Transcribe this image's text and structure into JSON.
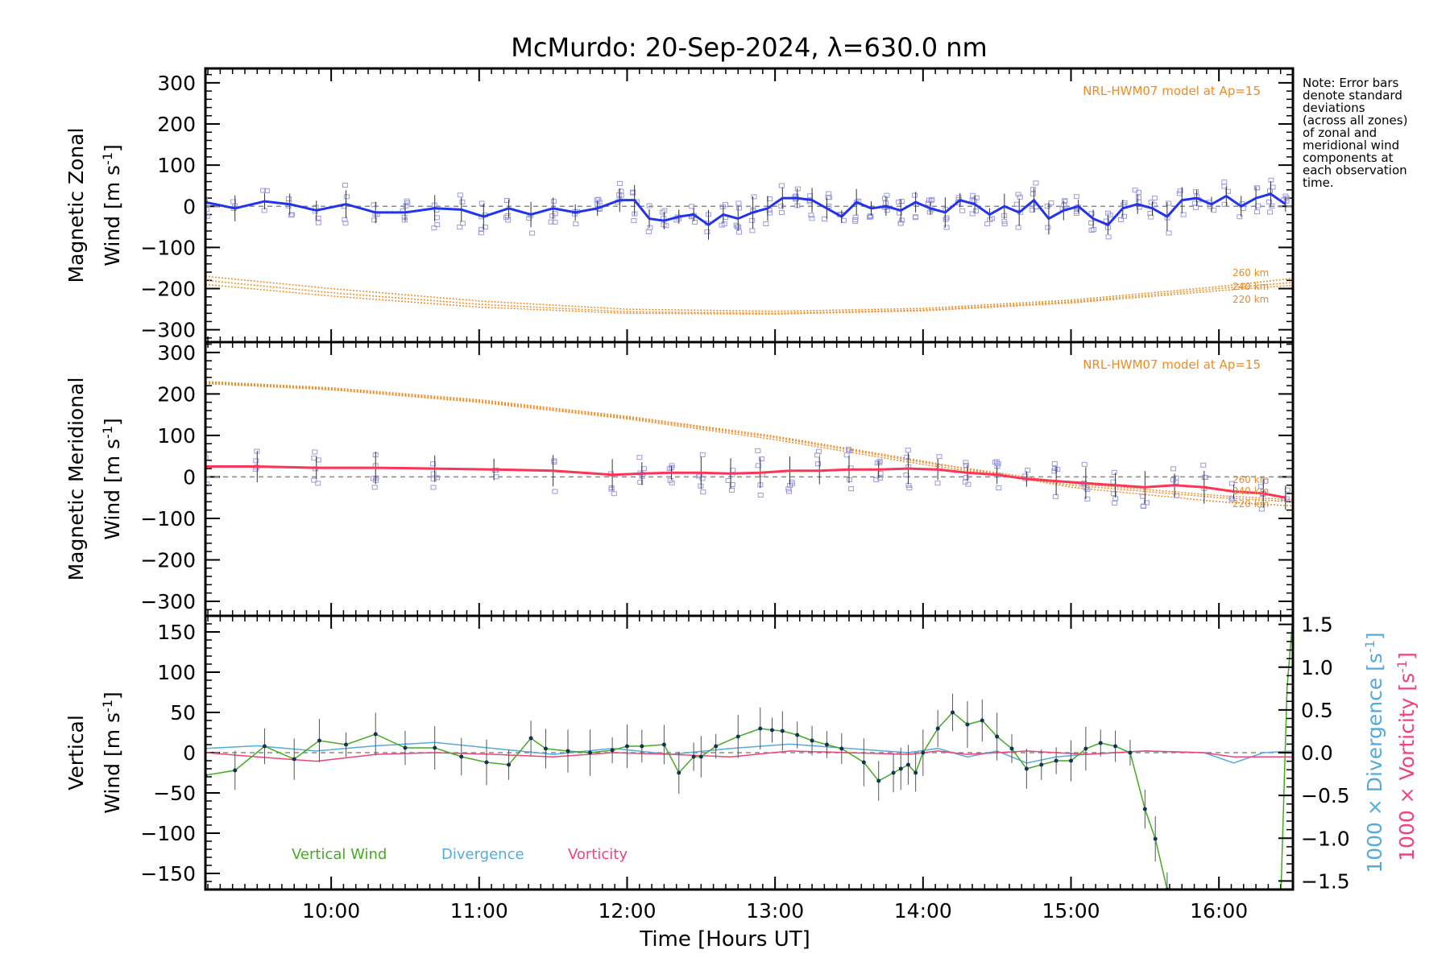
{
  "chart_data": {
    "title": "McMurdo: 20-Sep-2024, λ=630.0 nm",
    "note": [
      "Note: Error bars",
      "denote standard",
      "deviations",
      "(across all zones)",
      "of zonal and",
      "meridional wind",
      "components at",
      "each observation",
      "time."
    ],
    "xlabel": "Time [Hours UT]",
    "x_ticks": [
      "10:00",
      "11:00",
      "12:00",
      "13:00",
      "14:00",
      "15:00",
      "16:00"
    ],
    "x_tick_hours": [
      10,
      11,
      12,
      13,
      14,
      15,
      16
    ],
    "xlim_hours": [
      9.15,
      16.5
    ],
    "panels": [
      {
        "type": "line",
        "ylabel_1": "Magnetic Zonal",
        "ylabel_2": "Wind [m s",
        "ylabel_sup": "-1",
        "ylabel_close": "]",
        "ylim": [
          -330,
          335
        ],
        "y_ticks": [
          "300",
          "200",
          "100",
          "0",
          "−100",
          "−200",
          "−300"
        ],
        "y_tick_values": [
          300,
          200,
          100,
          0,
          -100,
          -200,
          -300
        ],
        "model_label": "NRL-HWM07 model at Ap=15",
        "model_alt_labels": [
          "260 km",
          "240 km",
          "220 km"
        ],
        "model_curves": [
          {
            "name": "260 km",
            "x": [
              9.15,
              10,
              11,
              12,
              13,
              14,
              15,
              16,
              16.5
            ],
            "y": [
              -170,
              -200,
              -230,
              -250,
              -255,
              -248,
              -228,
              -195,
              -175
            ]
          },
          {
            "name": "240 km",
            "x": [
              9.15,
              10,
              11,
              12,
              13,
              14,
              15,
              16,
              16.5
            ],
            "y": [
              -180,
              -210,
              -238,
              -256,
              -260,
              -252,
              -232,
              -200,
              -185
            ]
          },
          {
            "name": "220 km",
            "x": [
              9.15,
              10,
              11,
              12,
              13,
              14,
              15,
              16,
              16.5
            ],
            "y": [
              -190,
              -218,
              -245,
              -260,
              -262,
              -254,
              -235,
              -205,
              -192
            ]
          }
        ],
        "series_color": "#2233ee",
        "series": {
          "x": [
            9.15,
            9.35,
            9.55,
            9.72,
            9.9,
            10.1,
            10.3,
            10.5,
            10.7,
            10.88,
            11.03,
            11.2,
            11.35,
            11.5,
            11.65,
            11.8,
            11.95,
            12.05,
            12.15,
            12.25,
            12.35,
            12.45,
            12.55,
            12.65,
            12.75,
            12.85,
            12.95,
            13.05,
            13.15,
            13.25,
            13.35,
            13.45,
            13.55,
            13.65,
            13.75,
            13.85,
            13.95,
            14.05,
            14.15,
            14.25,
            14.35,
            14.45,
            14.55,
            14.65,
            14.75,
            14.85,
            14.95,
            15.05,
            15.15,
            15.25,
            15.35,
            15.45,
            15.55,
            15.65,
            15.75,
            15.85,
            15.95,
            16.05,
            16.15,
            16.25,
            16.35,
            16.45
          ],
          "y": [
            10,
            -5,
            12,
            5,
            -10,
            5,
            -15,
            -15,
            -5,
            -8,
            -25,
            -5,
            -20,
            -5,
            -15,
            -5,
            15,
            15,
            -30,
            -35,
            -25,
            -20,
            -45,
            -20,
            -30,
            -15,
            -5,
            20,
            20,
            15,
            -5,
            -25,
            10,
            -5,
            0,
            -10,
            10,
            -5,
            -15,
            15,
            5,
            -20,
            0,
            -15,
            15,
            -30,
            -10,
            0,
            -30,
            -45,
            -5,
            5,
            -5,
            -25,
            15,
            20,
            5,
            25,
            0,
            20,
            30,
            5
          ]
        }
      },
      {
        "type": "line",
        "ylabel_1": "Magnetic Meridional",
        "ylabel_2": "Wind [m s",
        "ylabel_sup": "-1",
        "ylabel_close": "]",
        "ylim": [
          -335,
          325
        ],
        "y_ticks": [
          "300",
          "200",
          "100",
          "0",
          "−100",
          "−200",
          "−300"
        ],
        "y_tick_values": [
          300,
          200,
          100,
          0,
          -100,
          -200,
          -300
        ],
        "model_label": "NRL-HWM07 model at Ap=15",
        "model_alt_labels": [
          "260 km",
          "240 km",
          "220 km"
        ],
        "model_curves": [
          {
            "name": "260 km",
            "x": [
              9.15,
              10,
              11,
              12,
              13,
              14,
              15,
              16,
              16.5
            ],
            "y": [
              225,
              210,
              180,
              140,
              90,
              30,
              -20,
              -50,
              -60
            ]
          },
          {
            "name": "240 km",
            "x": [
              9.15,
              10,
              11,
              12,
              13,
              14,
              15,
              16,
              16.5
            ],
            "y": [
              228,
              212,
              183,
              143,
              95,
              35,
              -15,
              -45,
              -55
            ]
          },
          {
            "name": "220 km",
            "x": [
              9.15,
              10,
              11,
              12,
              13,
              14,
              15,
              16,
              16.5
            ],
            "y": [
              230,
              215,
              186,
              146,
              98,
              38,
              -25,
              -60,
              -70
            ]
          }
        ],
        "series_color": "#ff3355",
        "series": {
          "x": [
            9.15,
            9.5,
            9.9,
            10.3,
            10.7,
            11.1,
            11.5,
            11.9,
            12.1,
            12.3,
            12.5,
            12.7,
            12.9,
            13.1,
            13.3,
            13.5,
            13.7,
            13.9,
            14.1,
            14.3,
            14.5,
            14.7,
            14.9,
            15.1,
            15.3,
            15.5,
            15.7,
            15.9,
            16.1,
            16.3,
            16.45
          ],
          "y": [
            25,
            25,
            22,
            22,
            20,
            18,
            15,
            5,
            8,
            10,
            10,
            8,
            10,
            15,
            15,
            18,
            18,
            20,
            18,
            10,
            5,
            -5,
            -10,
            -15,
            -20,
            -25,
            -20,
            -25,
            -35,
            -40,
            -50
          ]
        }
      },
      {
        "type": "line",
        "ylabel_1": "Vertical",
        "ylabel_2": "Wind [m s",
        "ylabel_sup": "-1",
        "ylabel_close": "]",
        "ylim": [
          -170,
          170
        ],
        "y_ticks": [
          "150",
          "100",
          "50",
          "0",
          "−50",
          "−100",
          "−150"
        ],
        "y_tick_values": [
          150,
          100,
          50,
          0,
          -50,
          -100,
          -150
        ],
        "right_ylim": [
          -1.6,
          1.6
        ],
        "right_ticks": [
          "1.5",
          "1.0",
          "0.5",
          "0.0",
          "−0.5",
          "−1.0",
          "−1.5"
        ],
        "right_tick_values": [
          1.5,
          1.0,
          0.5,
          0.0,
          -0.5,
          -1.0,
          -1.5
        ],
        "right_label_div": "1000 × Divergence [s",
        "right_label_vor": "1000 × Vorticity [s",
        "right_label_sup": "-1",
        "right_label_close": "]",
        "legend": [
          "Vertical Wind",
          "Divergence",
          "Vorticity"
        ],
        "series": [
          {
            "name": "Vertical Wind",
            "color": "#44aa22",
            "x": [
              9.15,
              9.35,
              9.55,
              9.75,
              9.92,
              10.1,
              10.3,
              10.5,
              10.7,
              10.88,
              11.05,
              11.2,
              11.35,
              11.45,
              11.6,
              11.75,
              11.9,
              12.0,
              12.1,
              12.25,
              12.35,
              12.45,
              12.5,
              12.6,
              12.75,
              12.9,
              12.98,
              13.05,
              13.15,
              13.25,
              13.35,
              13.45,
              13.6,
              13.7,
              13.8,
              13.85,
              13.9,
              13.95,
              14.0,
              14.1,
              14.2,
              14.3,
              14.4,
              14.5,
              14.6,
              14.7,
              14.8,
              14.9,
              15.0,
              15.1,
              15.2,
              15.3,
              15.4,
              15.5,
              15.57,
              15.65
            ],
            "y": [
              -28,
              -22,
              8,
              -8,
              15,
              10,
              23,
              6,
              6,
              -5,
              -12,
              -15,
              18,
              5,
              2,
              0,
              3,
              8,
              8,
              10,
              -25,
              -5,
              -5,
              8,
              20,
              30,
              28,
              27,
              22,
              15,
              10,
              5,
              -12,
              -35,
              -25,
              -20,
              -15,
              -25,
              0,
              30,
              50,
              35,
              40,
              20,
              5,
              -20,
              -15,
              -10,
              -10,
              5,
              12,
              8,
              0,
              -70,
              -107,
              -170
            ]
          },
          {
            "name": "Vertical Wind (edge)",
            "color": "#44aa22",
            "x": [
              16.42,
              16.46,
              16.5
            ],
            "y": [
              -170,
              80,
              170
            ]
          },
          {
            "name": "Divergence",
            "color": "#55aadd",
            "x": [
              9.15,
              9.5,
              9.9,
              10.3,
              10.7,
              11.1,
              11.5,
              11.9,
              12.3,
              12.7,
              13.1,
              13.5,
              13.9,
              14.1,
              14.3,
              14.5,
              14.7,
              14.9,
              15.1,
              15.3,
              15.5,
              15.9,
              16.1,
              16.3,
              16.5
            ],
            "y": [
              0.05,
              0.08,
              0.02,
              0.08,
              0.12,
              0.05,
              -0.02,
              0.05,
              -0.02,
              0.05,
              0.1,
              0.05,
              0.0,
              0.05,
              -0.05,
              0.02,
              -0.12,
              -0.05,
              -0.02,
              0.0,
              0.02,
              0.0,
              -0.12,
              0.0,
              0.02
            ]
          },
          {
            "name": "Vorticity",
            "color": "#ee4477",
            "x": [
              9.15,
              9.5,
              9.9,
              10.3,
              10.7,
              11.1,
              11.5,
              11.9,
              12.3,
              12.7,
              13.1,
              13.5,
              13.9,
              14.1,
              14.3,
              14.5,
              14.7,
              14.9,
              15.1,
              15.3,
              15.5,
              15.9,
              16.1,
              16.3,
              16.5
            ],
            "y": [
              0.0,
              -0.05,
              -0.1,
              -0.02,
              0.0,
              -0.02,
              -0.05,
              0.0,
              -0.02,
              -0.05,
              0.02,
              0.0,
              -0.02,
              0.02,
              -0.02,
              0.0,
              0.02,
              0.0,
              -0.02,
              0.0,
              0.02,
              0.0,
              -0.05,
              -0.05,
              -0.05
            ]
          }
        ]
      }
    ]
  }
}
